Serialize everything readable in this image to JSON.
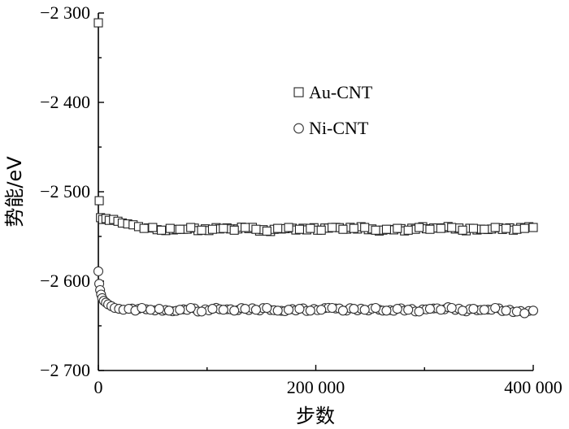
{
  "chart_data": {
    "type": "scatter",
    "xlabel": "步数",
    "ylabel": "势能/eV",
    "xlim": [
      0,
      400000
    ],
    "ylim": [
      -2700,
      -2300
    ],
    "x_ticks": [
      0,
      200000,
      400000
    ],
    "x_tick_labels": [
      "0",
      "200 000",
      "400 000"
    ],
    "x_minor_ticks": [
      100000,
      300000
    ],
    "y_ticks": [
      -2300,
      -2400,
      -2500,
      -2600,
      -2700
    ],
    "y_tick_labels": [
      "−2 300",
      "−2 400",
      "−2 500",
      "−2 600",
      "−2 700"
    ],
    "legend_position": "upper-center",
    "grid": false,
    "series": [
      {
        "name": "Au-CNT",
        "marker": "square",
        "x": [
          0,
          800,
          2000,
          4000,
          7000,
          10000,
          14000,
          18000,
          22000,
          27000,
          32000,
          37000,
          42000,
          50000,
          58000,
          66000,
          75000,
          85000,
          95000,
          105000,
          115000,
          125000,
          135000,
          145000,
          155000,
          165000,
          175000,
          185000,
          195000,
          205000,
          215000,
          225000,
          235000,
          245000,
          255000,
          265000,
          275000,
          285000,
          295000,
          305000,
          315000,
          325000,
          335000,
          345000,
          355000,
          365000,
          375000,
          385000,
          392000,
          400000
        ],
        "y": [
          -2311,
          -2510,
          -2529,
          -2531,
          -2530,
          -2532,
          -2531,
          -2533,
          -2535,
          -2536,
          -2537,
          -2539,
          -2541,
          -2540,
          -2543,
          -2541,
          -2542,
          -2540,
          -2543,
          -2542,
          -2541,
          -2543,
          -2540,
          -2542,
          -2544,
          -2541,
          -2540,
          -2542,
          -2541,
          -2543,
          -2540,
          -2542,
          -2541,
          -2540,
          -2543,
          -2542,
          -2541,
          -2543,
          -2540,
          -2542,
          -2541,
          -2540,
          -2543,
          -2541,
          -2542,
          -2540,
          -2541,
          -2542,
          -2541,
          -2540
        ]
      },
      {
        "name": "Ni-CNT",
        "marker": "circle",
        "x": [
          0,
          800,
          1600,
          2500,
          3500,
          5000,
          7000,
          9000,
          12000,
          15000,
          19000,
          23000,
          28000,
          34000,
          40000,
          48000,
          56000,
          65000,
          75000,
          85000,
          95000,
          105000,
          115000,
          125000,
          135000,
          145000,
          155000,
          165000,
          175000,
          185000,
          195000,
          205000,
          215000,
          225000,
          235000,
          245000,
          255000,
          265000,
          275000,
          285000,
          295000,
          305000,
          315000,
          325000,
          335000,
          345000,
          355000,
          365000,
          375000,
          385000,
          392000,
          400000
        ],
        "y": [
          -2589,
          -2603,
          -2610,
          -2615,
          -2619,
          -2622,
          -2624,
          -2626,
          -2628,
          -2630,
          -2631,
          -2632,
          -2631,
          -2633,
          -2630,
          -2632,
          -2631,
          -2633,
          -2632,
          -2630,
          -2634,
          -2631,
          -2632,
          -2633,
          -2631,
          -2632,
          -2630,
          -2633,
          -2632,
          -2631,
          -2633,
          -2632,
          -2630,
          -2633,
          -2631,
          -2632,
          -2630,
          -2633,
          -2631,
          -2632,
          -2634,
          -2631,
          -2632,
          -2630,
          -2633,
          -2631,
          -2632,
          -2630,
          -2633,
          -2634,
          -2636,
          -2633
        ]
      }
    ]
  }
}
